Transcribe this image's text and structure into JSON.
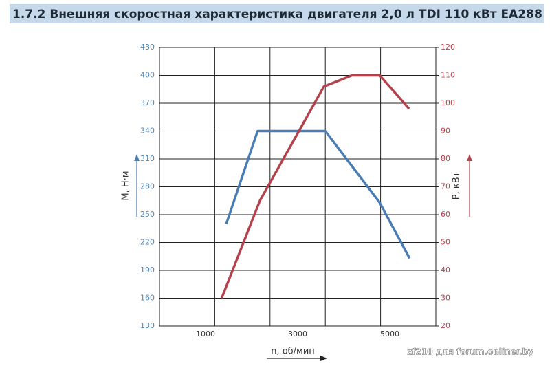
{
  "chart_data": {
    "type": "line",
    "title": "1.7.2 Внешняя скоростная характеристика двигателя 2,0 л TDI 110 кВт EA288",
    "xlabel": "n, об/мин",
    "ylabel": "М, Н·м",
    "y2label": "Р, кВт",
    "watermark": "zf210 для forum.onliner.by",
    "xlim": [
      0,
      6000
    ],
    "xticks": [
      1000,
      3000,
      5000
    ],
    "x_grid": [
      1200,
      2400,
      3600,
      4800
    ],
    "ylim": [
      130,
      430
    ],
    "yticks": [
      130,
      160,
      190,
      220,
      250,
      280,
      310,
      340,
      370,
      400,
      430
    ],
    "y2lim": [
      20,
      120
    ],
    "y2ticks": [
      20,
      30,
      40,
      50,
      60,
      70,
      80,
      90,
      100,
      110,
      120
    ],
    "grid": true,
    "series": [
      {
        "color": "#4a7db3",
        "axis": "y",
        "x": [
          1450,
          2130,
          3600,
          4780,
          5430
        ],
        "values": [
          240,
          340,
          340,
          263,
          203
        ]
      },
      {
        "color": "#b3424c",
        "axis": "y2",
        "x": [
          1350,
          2180,
          3570,
          4180,
          4780,
          5420
        ],
        "values": [
          30,
          65,
          106,
          110,
          110,
          98
        ]
      }
    ]
  }
}
